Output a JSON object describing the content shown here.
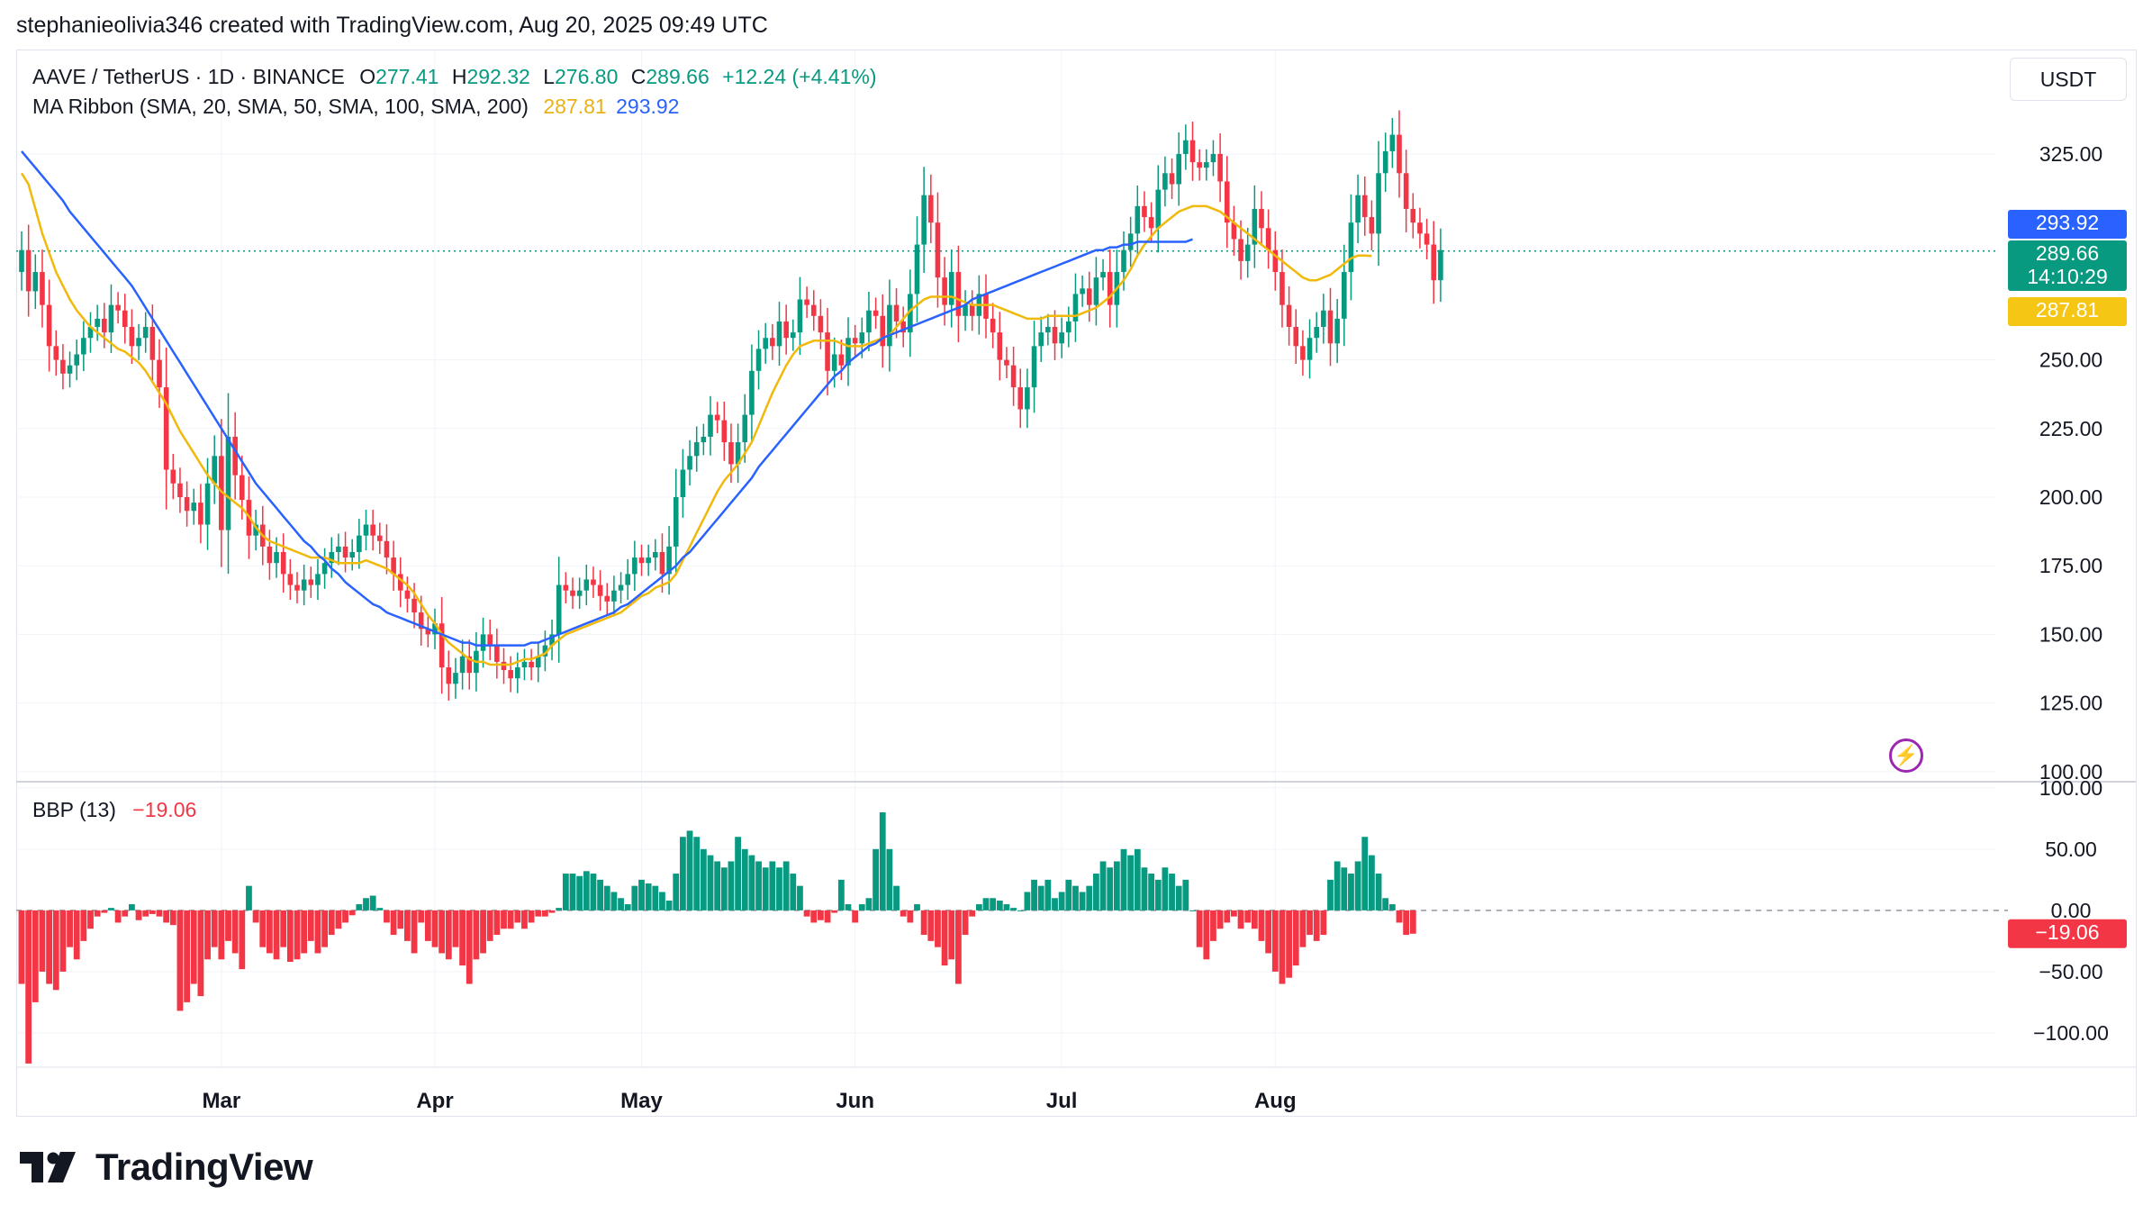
{
  "header": {
    "text": "stephanieolivia346 created with TradingView.com, Aug 20, 2025 09:49 UTC"
  },
  "legend": {
    "symbol": "AAVE / TetherUS · 1D · BINANCE",
    "open_label": "O",
    "open": "277.41",
    "high_label": "H",
    "high": "292.32",
    "low_label": "L",
    "low": "276.80",
    "close_label": "C",
    "close": "289.66",
    "change": "+12.24 (+4.41%)",
    "ma_title": "MA Ribbon (SMA, 20, SMA, 50, SMA, 100, SMA, 200)",
    "ma20_value": "287.81",
    "ma50_value": "293.92",
    "bbp_title": "BBP (13)",
    "bbp_value": "−19.06"
  },
  "currency_button": "USDT",
  "logo_text": "TradingView",
  "colors": {
    "up": "#089981",
    "down": "#f23645",
    "ma20": "#f0b90b",
    "ma50": "#2962ff",
    "grid": "#f0f3fa",
    "text": "#131722",
    "axis_text": "#131722"
  },
  "chart_data": [
    {
      "type": "candlestick",
      "title": "AAVE / TetherUS · 1D · BINANCE",
      "x_tick_labels": [
        "Mar",
        "Apr",
        "May",
        "Jun",
        "Jul",
        "Aug"
      ],
      "x_tick_indices": [
        29,
        60,
        90,
        121,
        151,
        182
      ],
      "y_tick_labels": [
        "100.00",
        "125.00",
        "150.00",
        "175.00",
        "200.00",
        "225.00",
        "250.00",
        "325.00"
      ],
      "y_tick_values": [
        100,
        125,
        150,
        175,
        200,
        225,
        250,
        325
      ],
      "ylim": [
        97,
        345
      ],
      "price_labels": [
        {
          "text": "293.92",
          "value": 293.92,
          "color": "#2962ff"
        },
        {
          "text": "289.66",
          "sub": "14:10:29",
          "value": 289.66,
          "color": "#089981"
        },
        {
          "text": "287.81",
          "value": 287.81,
          "color": "#f0b90b"
        }
      ],
      "current_price": 289.66,
      "closes": [
        290,
        275,
        282,
        270,
        255,
        250,
        245,
        248,
        252,
        258,
        262,
        265,
        260,
        270,
        268,
        262,
        255,
        258,
        262,
        250,
        240,
        210,
        205,
        200,
        195,
        198,
        190,
        205,
        215,
        188,
        222,
        208,
        199,
        186,
        190,
        182,
        176,
        180,
        172,
        168,
        166,
        170,
        168,
        172,
        176,
        180,
        182,
        178,
        180,
        186,
        190,
        186,
        184,
        178,
        172,
        166,
        163,
        158,
        152,
        150,
        154,
        138,
        132,
        136,
        142,
        136,
        144,
        150,
        146,
        140,
        137,
        134,
        138,
        140,
        138,
        142,
        146,
        150,
        168,
        166,
        164,
        166,
        170,
        168,
        164,
        162,
        166,
        168,
        172,
        178,
        176,
        178,
        180,
        172,
        182,
        200,
        210,
        215,
        220,
        222,
        230,
        228,
        220,
        212,
        220,
        230,
        246,
        254,
        258,
        255,
        264,
        258,
        260,
        272,
        270,
        266,
        260,
        246,
        252,
        248,
        258,
        256,
        260,
        268,
        266,
        255,
        270,
        264,
        260,
        274,
        292,
        310,
        300,
        280,
        270,
        282,
        266,
        270,
        266,
        274,
        265,
        260,
        250,
        248,
        240,
        232,
        240,
        255,
        260,
        262,
        256,
        260,
        264,
        274,
        276,
        270,
        280,
        282,
        270,
        282,
        290,
        296,
        306,
        302,
        298,
        312,
        318,
        314,
        325,
        330,
        322,
        320,
        322,
        325,
        315,
        300,
        294,
        286,
        292,
        305,
        298,
        290,
        282,
        270,
        262,
        255,
        250,
        258,
        262,
        268,
        256,
        265,
        282,
        300,
        310,
        302,
        296,
        318,
        326,
        332,
        318,
        305,
        300,
        296,
        292,
        279,
        290
      ],
      "ma20": [
        318,
        314,
        305,
        296,
        289,
        282,
        277,
        272,
        268,
        265,
        262,
        260,
        258,
        256,
        254,
        253,
        251,
        249,
        246,
        242,
        238,
        234,
        229,
        224,
        220,
        216,
        212,
        208,
        205,
        202,
        200,
        198,
        196,
        193,
        189,
        186,
        184,
        183,
        182,
        181,
        180,
        179,
        178,
        178,
        178,
        177,
        176,
        176,
        176,
        176,
        177,
        176,
        175,
        174,
        172,
        170,
        168,
        165,
        161,
        157,
        154,
        150,
        147,
        145,
        143,
        141,
        140,
        140,
        139,
        139,
        139,
        139,
        140,
        141,
        141,
        142,
        143,
        146,
        148,
        150,
        151,
        152,
        153,
        154,
        155,
        156,
        157,
        158,
        160,
        162,
        164,
        165,
        167,
        168,
        169,
        172,
        177,
        182,
        187,
        192,
        197,
        202,
        206,
        209,
        212,
        216,
        220,
        226,
        232,
        238,
        243,
        248,
        252,
        255,
        256,
        257,
        257,
        257,
        257,
        256,
        255,
        255,
        255,
        256,
        257,
        258,
        259,
        262,
        265,
        268,
        270,
        272,
        273,
        273,
        273,
        273,
        272,
        271,
        270,
        270,
        270,
        270,
        269,
        268,
        267,
        266,
        265,
        265,
        265,
        266,
        266,
        266,
        266,
        266,
        267,
        268,
        269,
        271,
        273,
        276,
        279,
        283,
        288,
        292,
        295,
        298,
        300,
        302,
        304,
        305,
        306,
        306,
        306,
        305,
        304,
        302,
        300,
        298,
        296,
        294,
        292,
        290,
        288,
        286,
        284,
        282,
        280,
        279,
        279,
        280,
        281,
        283,
        285,
        287,
        288,
        288,
        287.81
      ],
      "ma50": [
        326,
        323,
        320,
        317,
        314,
        311,
        308,
        304,
        301,
        298,
        295,
        292,
        289,
        286,
        283,
        280,
        277,
        273,
        269,
        265,
        261,
        257,
        253,
        249,
        245,
        241,
        237,
        233,
        229,
        225,
        221,
        217,
        213,
        209,
        205,
        202,
        199,
        196,
        193,
        190,
        187,
        184,
        182,
        179,
        177,
        174,
        172,
        169,
        167,
        165,
        163,
        161,
        160,
        158,
        157,
        156,
        155,
        154,
        153,
        152,
        151,
        150,
        149,
        148,
        147,
        147,
        146,
        146,
        146,
        146,
        146,
        146,
        146,
        146,
        147,
        147,
        148,
        149,
        150,
        151,
        152,
        153,
        154,
        155,
        156,
        157,
        158,
        160,
        161,
        163,
        165,
        167,
        169,
        171,
        173,
        175,
        178,
        180,
        183,
        186,
        189,
        192,
        195,
        198,
        201,
        204,
        207,
        211,
        214,
        217,
        220,
        223,
        226,
        229,
        232,
        235,
        238,
        241,
        244,
        246,
        249,
        251,
        253,
        255,
        256,
        258,
        259,
        260,
        261,
        262,
        263,
        264,
        265,
        266,
        267,
        268,
        269,
        270,
        272,
        273,
        274,
        275,
        276,
        277,
        278,
        279,
        280,
        281,
        282,
        283,
        284,
        285,
        286,
        287,
        288,
        289,
        290,
        290,
        291,
        291,
        292,
        292,
        293,
        293,
        293,
        293,
        293,
        293,
        293,
        293,
        293.92
      ],
      "ma_x_offset": 19
    },
    {
      "type": "bar",
      "title": "BBP (13)",
      "y_tick_labels": [
        "100.00",
        "50.00",
        "0.00",
        "−50.00",
        "−100.00"
      ],
      "y_tick_values": [
        100,
        50,
        0,
        -50,
        -100
      ],
      "ylim": [
        -128,
        105
      ],
      "last_value": -19.06,
      "last_label": "−19.06",
      "values": [
        -60,
        -125,
        -75,
        -50,
        -60,
        -65,
        -50,
        -30,
        -40,
        -25,
        -15,
        -5,
        -2,
        2,
        -10,
        -5,
        5,
        -8,
        -5,
        -3,
        -5,
        -10,
        -12,
        -82,
        -75,
        -60,
        -70,
        -40,
        -30,
        -40,
        -25,
        -35,
        -48,
        20,
        -10,
        -30,
        -35,
        -40,
        -30,
        -42,
        -40,
        -35,
        -25,
        -35,
        -30,
        -20,
        -15,
        -10,
        -4,
        5,
        10,
        12,
        2,
        -10,
        -20,
        -15,
        -25,
        -35,
        -10,
        -25,
        -30,
        -35,
        -40,
        -30,
        -45,
        -60,
        -40,
        -35,
        -25,
        -20,
        -15,
        -15,
        -10,
        -15,
        -10,
        -5,
        -5,
        -2,
        2,
        30,
        30,
        28,
        32,
        30,
        25,
        20,
        15,
        10,
        5,
        20,
        25,
        22,
        20,
        15,
        8,
        30,
        60,
        65,
        60,
        50,
        45,
        40,
        35,
        40,
        60,
        50,
        45,
        40,
        35,
        40,
        35,
        40,
        30,
        20,
        -5,
        -10,
        -8,
        -10,
        -2,
        25,
        5,
        -10,
        5,
        10,
        50,
        80,
        50,
        20,
        -5,
        -10,
        5,
        -20,
        -25,
        -30,
        -45,
        -40,
        -60,
        -20,
        -5,
        5,
        10,
        10,
        8,
        5,
        2,
        0,
        15,
        25,
        20,
        25,
        10,
        15,
        25,
        20,
        15,
        20,
        30,
        40,
        35,
        40,
        50,
        45,
        50,
        35,
        30,
        25,
        35,
        30,
        20,
        25,
        0,
        -30,
        -40,
        -25,
        -15,
        -10,
        -5,
        -15,
        -10,
        -15,
        -25,
        -35,
        -50,
        -60,
        -55,
        -45,
        -30,
        -20,
        -25,
        -20,
        25,
        40,
        35,
        30,
        40,
        60,
        45,
        30,
        10,
        5,
        -10,
        -20,
        -19.06
      ]
    }
  ]
}
